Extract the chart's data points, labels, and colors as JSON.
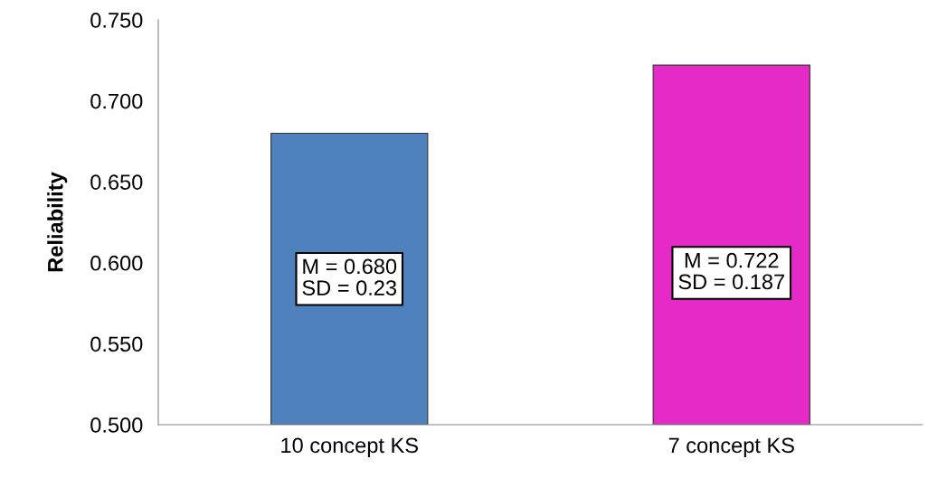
{
  "chart_data": {
    "type": "bar",
    "ylabel": "Reliability",
    "categories": [
      "10 concept KS",
      "7 concept KS"
    ],
    "values": [
      0.68,
      0.722
    ],
    "colors": [
      "#4f81bd",
      "#e62ac8"
    ],
    "ylim": [
      0.5,
      0.75
    ],
    "yticks": [
      {
        "value": 0.5,
        "label": "0.500"
      },
      {
        "value": 0.55,
        "label": "0.550"
      },
      {
        "value": 0.6,
        "label": "0.600"
      },
      {
        "value": 0.65,
        "label": "0.650"
      },
      {
        "value": 0.7,
        "label": "0.700"
      },
      {
        "value": 0.75,
        "label": "0.750"
      }
    ],
    "grid": false,
    "legend": false,
    "annotations": [
      "M = 0.680\nSD = 0.23",
      "M = 0.722\nSD = 0.187"
    ]
  }
}
